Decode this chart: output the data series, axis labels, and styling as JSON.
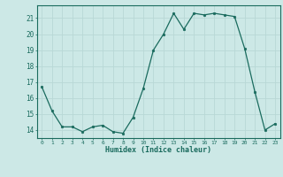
{
  "x": [
    0,
    1,
    2,
    3,
    4,
    5,
    6,
    7,
    8,
    9,
    10,
    11,
    12,
    13,
    14,
    15,
    16,
    17,
    18,
    19,
    20,
    21,
    22,
    23
  ],
  "y": [
    16.7,
    15.2,
    14.2,
    14.2,
    13.9,
    14.2,
    14.3,
    13.9,
    13.8,
    14.8,
    16.6,
    19.0,
    20.0,
    21.3,
    20.3,
    21.3,
    21.2,
    21.3,
    21.2,
    21.1,
    19.1,
    16.4,
    14.0,
    14.4
  ],
  "ylabel_values": [
    14,
    15,
    16,
    17,
    18,
    19,
    20,
    21
  ],
  "ylim": [
    13.5,
    21.8
  ],
  "xlim": [
    -0.5,
    23.5
  ],
  "xlabel": "Humidex (Indice chaleur)",
  "line_color": "#1a6b5e",
  "marker_color": "#1a6b5e",
  "bg_color": "#cce8e6",
  "grid_color": "#b8d8d6",
  "axis_color": "#1a6b5e",
  "tick_label_color": "#1a6b5e",
  "xlabel_color": "#1a6b5e",
  "figsize": [
    3.2,
    2.0
  ],
  "dpi": 100
}
